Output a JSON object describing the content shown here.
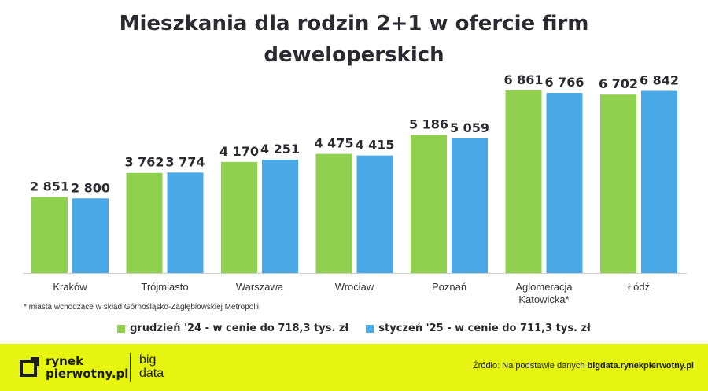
{
  "chart_data": {
    "type": "bar",
    "title": "Mieszkania dla rodzin 2+1 w ofercie firm deweloperskich",
    "categories": [
      "Kraków",
      "Trójmiasto",
      "Warszawa",
      "Wrocław",
      "Poznań",
      "Aglomeracja Katowicka*",
      "Łódź"
    ],
    "series": [
      {
        "name": "grudzień '24 - w cenie do 718,3 tys. zł",
        "values": [
          2851,
          3762,
          4170,
          4475,
          5186,
          6861,
          6702
        ],
        "labels": [
          "2 851",
          "3 762",
          "4 170",
          "4 475",
          "5 186",
          "6 861",
          "6 702"
        ],
        "color": "#8fd14f"
      },
      {
        "name": "styczeń '25 - w cenie do 711,3 tys. zł",
        "values": [
          2800,
          3774,
          4251,
          4415,
          5059,
          6766,
          6842
        ],
        "labels": [
          "2 800",
          "3 774",
          "4 251",
          "4 415",
          "5 059",
          "6 766",
          "6 842"
        ],
        "color": "#48a9e6"
      }
    ],
    "ylim": [
      0,
      7000
    ],
    "xlabel": "",
    "ylabel": "",
    "grid": false,
    "legend_position": "bottom"
  },
  "title_line1": "Mieszkania dla rodzin 2+1 w ofercie firm",
  "title_line2": "deweloperskich",
  "footnote": "* miasta wchodzace w skład Górnośląsko-Zagłębiowskiej Metropolii",
  "footer": {
    "brand_line1": "rynek",
    "brand_line2": "pierwotny.pl",
    "bigdata_line1": "big",
    "bigdata_line2": "data",
    "source_prefix": "Źródło: Na podstawie danych",
    "source_link": "bigdata.rynekpierwotny.pl",
    "background_color": "#e5f50f"
  }
}
